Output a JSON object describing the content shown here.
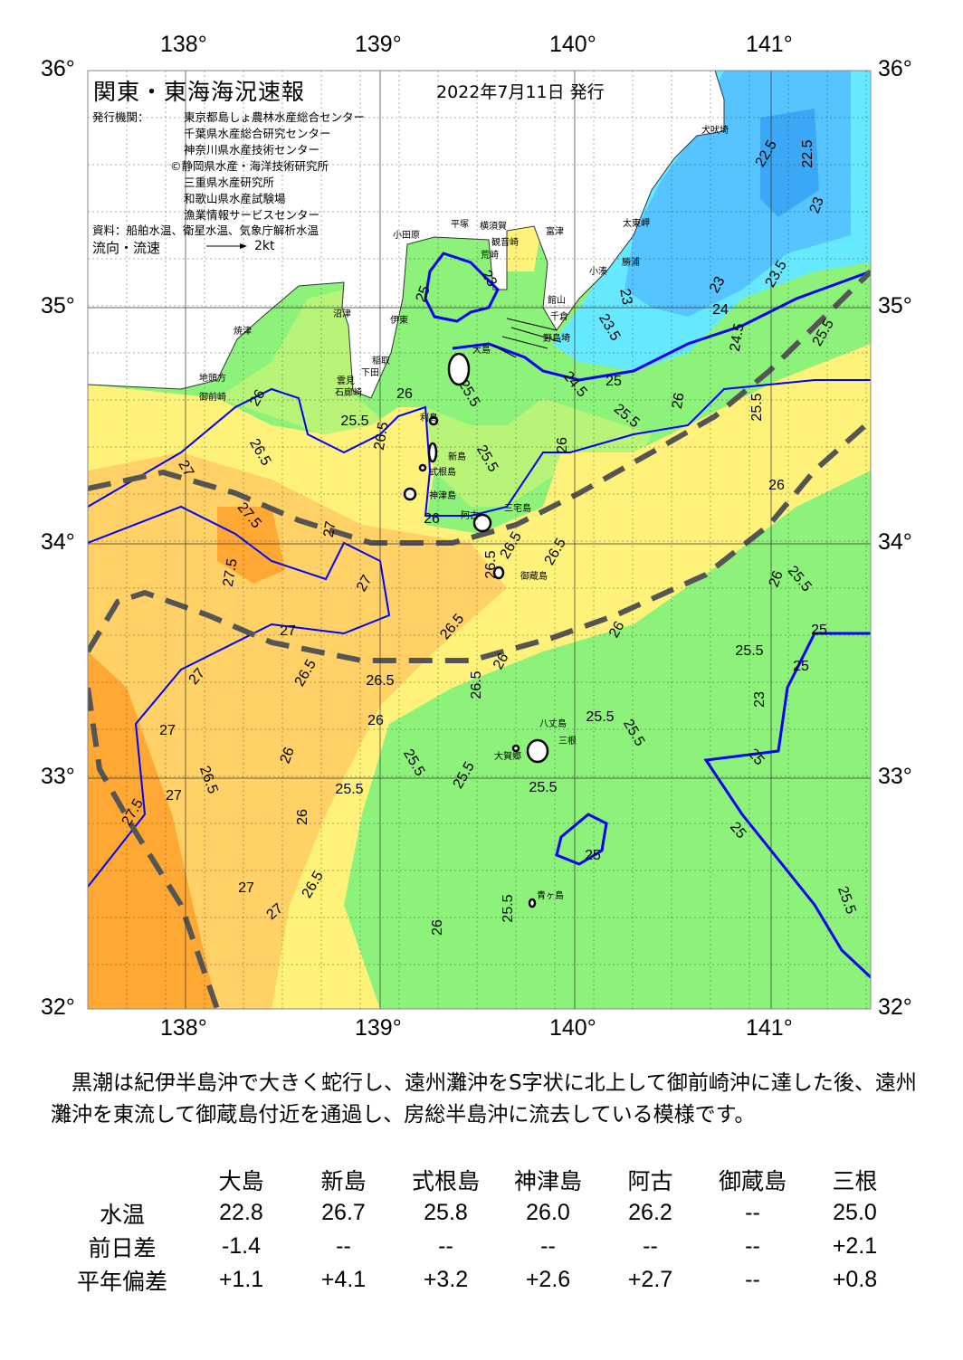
{
  "header": {
    "title": "関東・東海海況速報",
    "date": "2022年7月11日 発行",
    "agency_label": "発行機関：",
    "agencies": [
      "東京都島しょ農林水産総合センター",
      "千葉県水産総合研究センター",
      "神奈川県水産技術センター",
      "©静岡県水産・海洋技術研究所",
      "三重県水産研究所",
      "和歌山県水産試験場",
      "漁業情報サービスセンター"
    ],
    "source": "資料：船舶水温、衛星水温、気象庁解析水温",
    "flow_label": "流向・流速",
    "flow_scale": "2kt"
  },
  "map": {
    "lon_ticks": [
      "138°",
      "139°",
      "140°",
      "141°"
    ],
    "lat_ticks": [
      "36°",
      "35°",
      "34°",
      "33°",
      "32°"
    ],
    "extent": {
      "lon": [
        137.5,
        141.5
      ],
      "lat": [
        32,
        36
      ]
    },
    "colors": {
      "land": "#ffffff",
      "orange": "#ffa833",
      "light_orange": "#ffd166",
      "yellow": "#fff27a",
      "light_green": "#b8f478",
      "green": "#8cf27a",
      "cyan": "#66e8ff",
      "blue": "#55c4ff",
      "deep_blue": "#3aa8f5",
      "isotherm": "#0000ff",
      "kuroshio": "#555555"
    },
    "contour_labels": [
      "25",
      "23",
      "25.5",
      "26",
      "25.5",
      "26.5",
      "26",
      "26.5",
      "27",
      "27.5",
      "27",
      "27.5",
      "27",
      "26.5",
      "27",
      "26.5",
      "27",
      "26.5",
      "26.5",
      "26",
      "27",
      "26",
      "26.5",
      "25.5",
      "25.5",
      "25.5",
      "25.5",
      "27.5",
      "27",
      "26",
      "26.5",
      "27",
      "27",
      "26",
      "25.5",
      "25",
      "25.5",
      "25.5",
      "26",
      "25.5",
      "26",
      "25",
      "25",
      "23",
      "25",
      "25",
      "25.5",
      "26",
      "25.5",
      "26",
      "25.5",
      "26",
      "25.5",
      "25",
      "24.5",
      "24.5",
      "24",
      "23",
      "23.5",
      "25.5",
      "23",
      "23.5",
      "22.5",
      "22.5",
      "23",
      "26",
      "25.5",
      "26.5",
      "26.5",
      "26.5",
      "26"
    ],
    "place_names": [
      "犬吠埼",
      "太東岬",
      "小湊",
      "勝浦",
      "館山",
      "千倉",
      "野島埼",
      "富津",
      "横須賀",
      "平塚",
      "観音崎",
      "荒崎",
      "小田原",
      "伊東",
      "沼津",
      "焼津",
      "稲取",
      "下田",
      "雲見",
      "石廊崎",
      "地頭方",
      "御前崎",
      "大島",
      "利島",
      "新島",
      "式根島",
      "神津島",
      "三宅島",
      "阿古",
      "御蔵島",
      "八丈島",
      "三根",
      "大賀郷",
      "青ヶ島"
    ]
  },
  "description": "　黒潮は紀伊半島沖で大きく蛇行し、遠州灘沖をS字状に北上して御前崎沖に達した後、遠州灘沖を東流して御蔵島付近を通過し、房総半島沖に流去している模様です。",
  "table": {
    "stations": [
      "大島",
      "新島",
      "式根島",
      "神津島",
      "阿古",
      "御蔵島",
      "三根"
    ],
    "rows": [
      {
        "label": "水温",
        "values": [
          "22.8",
          "26.7",
          "25.8",
          "26.0",
          "26.2",
          "--",
          "25.0"
        ]
      },
      {
        "label": "前日差",
        "values": [
          "-1.4",
          "--",
          "--",
          "--",
          "--",
          "--",
          "+2.1"
        ]
      },
      {
        "label": "平年偏差",
        "values": [
          "+1.1",
          "+4.1",
          "+3.2",
          "+2.6",
          "+2.7",
          "--",
          "+0.8"
        ]
      }
    ]
  }
}
